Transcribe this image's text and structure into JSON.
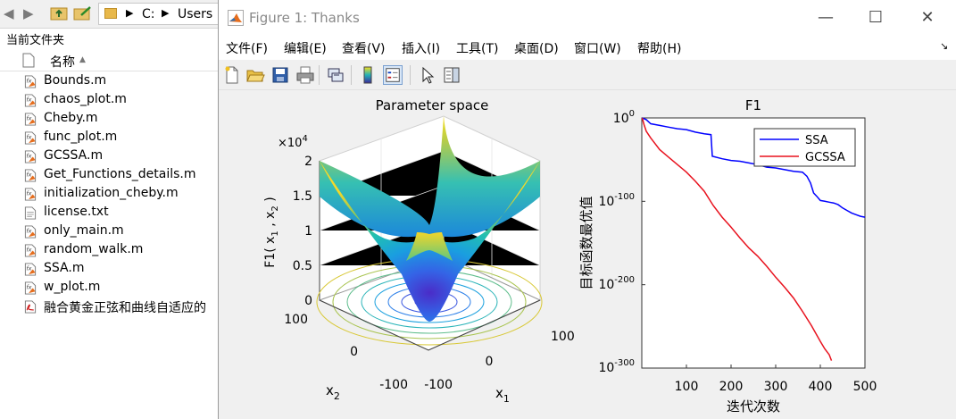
{
  "browser": {
    "path": [
      "C:",
      "Users"
    ],
    "current_folder_label": "当前文件夹",
    "column_name": "名称",
    "sort_indicator": "▲",
    "files": [
      {
        "name": "Bounds.m",
        "type": "matlab-function"
      },
      {
        "name": "chaos_plot.m",
        "type": "matlab-function"
      },
      {
        "name": "Cheby.m",
        "type": "matlab-function"
      },
      {
        "name": "func_plot.m",
        "type": "matlab-function"
      },
      {
        "name": "GCSSA.m",
        "type": "matlab-function"
      },
      {
        "name": "Get_Functions_details.m",
        "type": "matlab-function"
      },
      {
        "name": "initialization_cheby.m",
        "type": "matlab-function"
      },
      {
        "name": "license.txt",
        "type": "text"
      },
      {
        "name": "only_main.m",
        "type": "matlab-function"
      },
      {
        "name": "random_walk.m",
        "type": "matlab-function"
      },
      {
        "name": "SSA.m",
        "type": "matlab-function"
      },
      {
        "name": "w_plot.m",
        "type": "matlab-function"
      },
      {
        "name": "融合黄金正弦和曲线自适应的",
        "type": "pdf"
      }
    ]
  },
  "window": {
    "title": "Figure 1: Thanks",
    "minimize": "—",
    "maximize": "☐",
    "close": "✕",
    "menus": [
      "文件(F)",
      "编辑(E)",
      "查看(V)",
      "插入(I)",
      "工具(T)",
      "桌面(D)",
      "窗口(W)",
      "帮助(H)"
    ],
    "toolbar_icons": [
      "new-figure-icon",
      "open-file-icon",
      "save-icon",
      "print-icon",
      "link-plot-icon",
      "colorbar-icon",
      "legend-icon",
      "pointer-icon",
      "property-inspector-icon"
    ]
  },
  "chart_data": [
    {
      "type": "surface",
      "title": "Parameter space",
      "xlabel": "x_1",
      "ylabel": "x_2",
      "zlabel": "F1( x_1 , x_2 )",
      "z_exponent_label": "×10^4",
      "x_ticks": [
        -100,
        0,
        100
      ],
      "y_ticks": [
        -100,
        0,
        100
      ],
      "z_ticks": [
        0,
        0.5,
        1,
        1.5,
        2
      ],
      "zlim": [
        0,
        20000
      ],
      "function": "x1^2 + x2^2",
      "colormap": "parula",
      "contour_on_floor": true
    },
    {
      "type": "line",
      "title": "F1",
      "xlabel": "迭代次数",
      "ylabel": "目标函数最优值",
      "yscale": "log",
      "xlim": [
        0,
        500
      ],
      "x_ticks": [
        100,
        200,
        300,
        400,
        500
      ],
      "ylim_exponent": [
        -300,
        0
      ],
      "y_ticks": [
        "10^0",
        "10^-100",
        "10^-200",
        "10^-300"
      ],
      "legend_position": "top-right",
      "series": [
        {
          "name": "SSA",
          "color": "#0000ff",
          "points": [
            [
              1,
              0
            ],
            [
              10,
              -2
            ],
            [
              20,
              -7
            ],
            [
              40,
              -9
            ],
            [
              60,
              -11
            ],
            [
              80,
              -13
            ],
            [
              100,
              -14
            ],
            [
              120,
              -17
            ],
            [
              140,
              -19
            ],
            [
              155,
              -20
            ],
            [
              158,
              -46
            ],
            [
              180,
              -49
            ],
            [
              200,
              -51
            ],
            [
              220,
              -52
            ],
            [
              240,
              -54
            ],
            [
              260,
              -56
            ],
            [
              280,
              -59
            ],
            [
              300,
              -60
            ],
            [
              320,
              -62
            ],
            [
              340,
              -64
            ],
            [
              360,
              -65
            ],
            [
              370,
              -70
            ],
            [
              378,
              -78
            ],
            [
              385,
              -90
            ],
            [
              392,
              -94
            ],
            [
              400,
              -99
            ],
            [
              410,
              -100
            ],
            [
              420,
              -101
            ],
            [
              430,
              -102
            ],
            [
              440,
              -104
            ],
            [
              450,
              -108
            ],
            [
              460,
              -111
            ],
            [
              470,
              -114
            ],
            [
              480,
              -116
            ],
            [
              490,
              -118
            ],
            [
              500,
              -119
            ]
          ]
        },
        {
          "name": "GCSSA",
          "color": "#e8121e",
          "points": [
            [
              1,
              0
            ],
            [
              5,
              -8
            ],
            [
              10,
              -16
            ],
            [
              20,
              -24
            ],
            [
              30,
              -31
            ],
            [
              40,
              -38
            ],
            [
              60,
              -47
            ],
            [
              80,
              -56
            ],
            [
              100,
              -65
            ],
            [
              120,
              -76
            ],
            [
              140,
              -88
            ],
            [
              160,
              -105
            ],
            [
              180,
              -119
            ],
            [
              200,
              -131
            ],
            [
              220,
              -144
            ],
            [
              240,
              -156
            ],
            [
              260,
              -166
            ],
            [
              280,
              -178
            ],
            [
              300,
              -191
            ],
            [
              320,
              -203
            ],
            [
              340,
              -216
            ],
            [
              360,
              -232
            ],
            [
              380,
              -249
            ],
            [
              400,
              -268
            ],
            [
              410,
              -277
            ],
            [
              420,
              -284
            ],
            [
              425,
              -291
            ]
          ]
        }
      ]
    }
  ]
}
